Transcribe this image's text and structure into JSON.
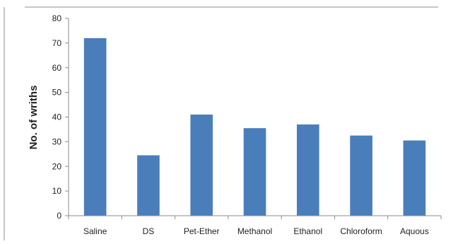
{
  "chart_data": {
    "type": "bar",
    "title": "",
    "xlabel": "",
    "ylabel": "No. of wriths",
    "categories": [
      "Saline",
      "DS",
      "Pet-Ether",
      "Methanol",
      "Ethanol",
      "Chloroform",
      "Aquous"
    ],
    "values": [
      72,
      24.5,
      41,
      35.5,
      37,
      32.5,
      30.5
    ],
    "ylim": [
      0,
      80
    ],
    "yticks": [
      0,
      10,
      20,
      30,
      40,
      50,
      60,
      70,
      80
    ],
    "grid": false,
    "legend": "none",
    "bar_color": "#4a7ebb"
  }
}
